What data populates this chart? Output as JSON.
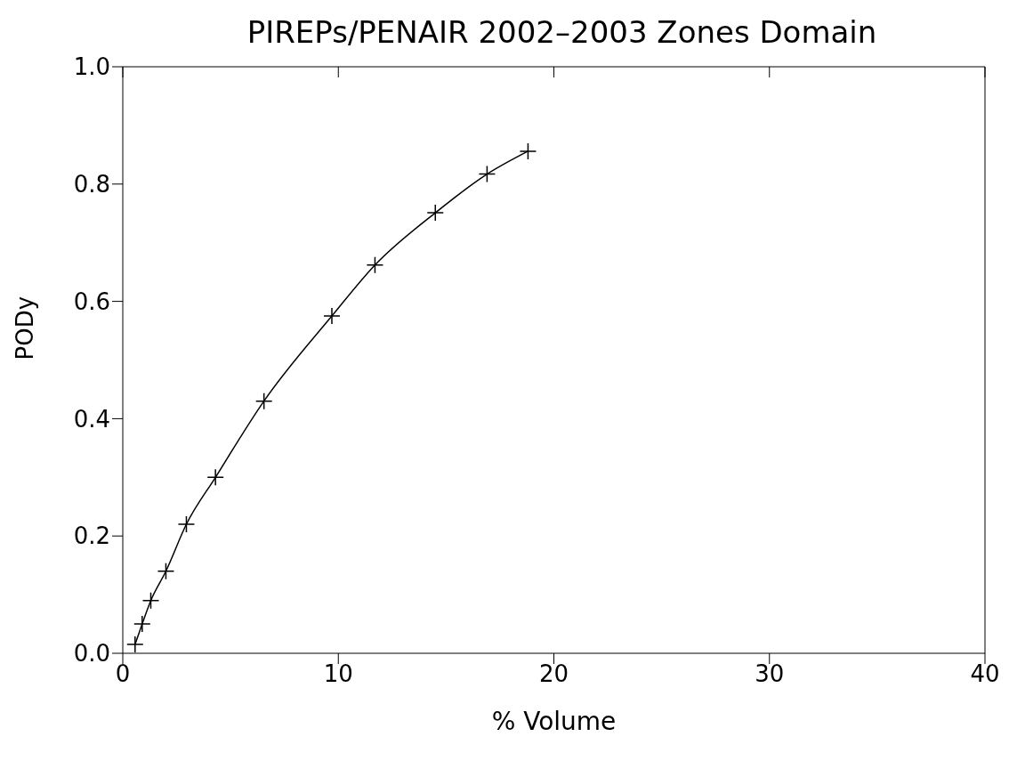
{
  "chart_data": {
    "type": "line",
    "title": "PIREPs/PENAIR 2002–2003 Zones Domain",
    "xlabel": "% Volume",
    "ylabel": "PODy",
    "x": [
      0.57,
      0.9,
      1.3,
      2.0,
      2.95,
      4.3,
      6.55,
      9.7,
      11.7,
      14.5,
      16.9,
      18.8
    ],
    "series": [
      {
        "color": "#000000",
        "values": [
          0.015,
          0.05,
          0.09,
          0.14,
          0.22,
          0.3,
          0.43,
          0.575,
          0.662,
          0.751,
          0.817,
          0.856
        ]
      }
    ],
    "xlim": [
      0,
      40
    ],
    "xticks": [
      0,
      10,
      20,
      30,
      40
    ],
    "ylim": [
      0,
      1
    ],
    "yticks": [
      {
        "value": 0,
        "label": "0.0"
      },
      {
        "value": 0.2,
        "label": "0.2"
      },
      {
        "value": 0.4,
        "label": "0.4"
      },
      {
        "value": 0.6,
        "label": "0.6"
      },
      {
        "value": 0.8,
        "label": "0.8"
      },
      {
        "value": 1,
        "label": "1.0"
      }
    ],
    "grid": false,
    "legend": false,
    "marker": "cross",
    "line_style": "solid"
  }
}
